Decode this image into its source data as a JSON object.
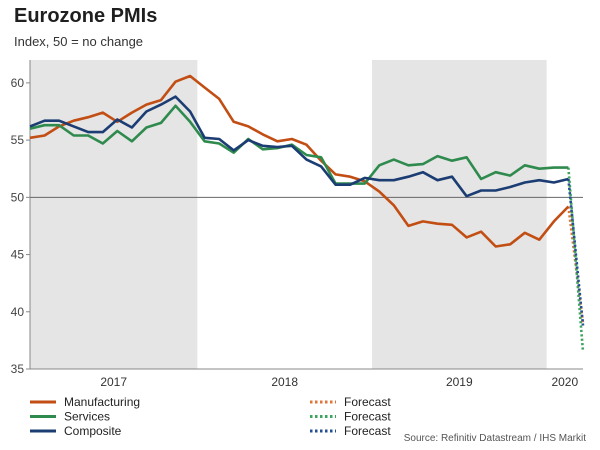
{
  "header": {
    "title": "Eurozone PMIs",
    "subtitle": "Index, 50 = no change"
  },
  "source": "Source: Refinitiv Datastream / IHS Markit",
  "chart_data": {
    "type": "line",
    "title": "Eurozone PMIs",
    "subtitle": "Index, 50 = no change",
    "xlabel": "",
    "ylabel": "",
    "ylim": [
      35,
      62
    ],
    "yticks": [
      35,
      40,
      45,
      50,
      55,
      60
    ],
    "grid": false,
    "reference_line": 50,
    "x": [
      "2017-01",
      "2017-02",
      "2017-03",
      "2017-04",
      "2017-05",
      "2017-06",
      "2017-07",
      "2017-08",
      "2017-09",
      "2017-10",
      "2017-11",
      "2017-12",
      "2018-01",
      "2018-02",
      "2018-03",
      "2018-04",
      "2018-05",
      "2018-06",
      "2018-07",
      "2018-08",
      "2018-09",
      "2018-10",
      "2018-11",
      "2018-12",
      "2019-01",
      "2019-02",
      "2019-03",
      "2019-04",
      "2019-05",
      "2019-06",
      "2019-07",
      "2019-08",
      "2019-09",
      "2019-10",
      "2019-11",
      "2019-12",
      "2020-01",
      "2020-02",
      "2020-03"
    ],
    "year_labels": [
      "2017",
      "2018",
      "2019",
      "2020"
    ],
    "shaded_years": [
      "2017",
      "2019"
    ],
    "series": [
      {
        "name": "Manufacturing",
        "color": "#c24e14",
        "values": [
          55.2,
          55.4,
          56.2,
          56.7,
          57.0,
          57.4,
          56.6,
          57.4,
          58.1,
          58.5,
          60.1,
          60.6,
          59.6,
          58.6,
          56.6,
          56.2,
          55.5,
          54.9,
          55.1,
          54.6,
          53.2,
          52.0,
          51.8,
          51.4,
          50.5,
          49.3,
          47.5,
          47.9,
          47.7,
          47.6,
          46.5,
          47.0,
          45.7,
          45.9,
          46.9,
          46.3,
          47.9,
          49.2,
          null
        ],
        "forecast_color": "#e0743a",
        "forecast": [
          null,
          null,
          null,
          null,
          null,
          null,
          null,
          null,
          null,
          null,
          null,
          null,
          null,
          null,
          null,
          null,
          null,
          null,
          null,
          null,
          null,
          null,
          null,
          null,
          null,
          null,
          null,
          null,
          null,
          null,
          null,
          null,
          null,
          null,
          null,
          null,
          null,
          49.2,
          39.0
        ]
      },
      {
        "name": "Services",
        "color": "#2f8a4e",
        "values": [
          56.0,
          56.3,
          56.3,
          55.4,
          55.4,
          54.7,
          55.8,
          54.9,
          56.1,
          56.5,
          58.0,
          56.6,
          54.9,
          54.7,
          53.9,
          55.1,
          54.2,
          54.3,
          54.6,
          53.7,
          53.5,
          51.2,
          51.2,
          51.2,
          52.8,
          53.3,
          52.8,
          52.9,
          53.6,
          53.2,
          53.5,
          51.6,
          52.2,
          51.9,
          52.8,
          52.5,
          52.6,
          52.6,
          null
        ],
        "forecast_color": "#3fa55e",
        "forecast": [
          null,
          null,
          null,
          null,
          null,
          null,
          null,
          null,
          null,
          null,
          null,
          null,
          null,
          null,
          null,
          null,
          null,
          null,
          null,
          null,
          null,
          null,
          null,
          null,
          null,
          null,
          null,
          null,
          null,
          null,
          null,
          null,
          null,
          null,
          null,
          null,
          null,
          52.6,
          36.5
        ]
      },
      {
        "name": "Composite",
        "color": "#1b3d73",
        "values": [
          56.2,
          56.7,
          56.7,
          56.2,
          55.7,
          55.7,
          56.8,
          56.1,
          57.5,
          58.1,
          58.8,
          57.5,
          55.2,
          55.1,
          54.1,
          55.0,
          54.5,
          54.4,
          54.5,
          53.3,
          52.7,
          51.1,
          51.1,
          51.7,
          51.5,
          51.5,
          51.8,
          52.2,
          51.5,
          51.8,
          50.1,
          50.6,
          50.6,
          50.9,
          51.3,
          51.5,
          51.3,
          51.6,
          null
        ],
        "forecast_color": "#254f93",
        "forecast": [
          null,
          null,
          null,
          null,
          null,
          null,
          null,
          null,
          null,
          null,
          null,
          null,
          null,
          null,
          null,
          null,
          null,
          null,
          null,
          null,
          null,
          null,
          null,
          null,
          null,
          null,
          null,
          null,
          null,
          null,
          null,
          null,
          null,
          null,
          null,
          null,
          null,
          51.6,
          38.8
        ]
      }
    ],
    "legend": {
      "placement": "bottom",
      "entries": [
        {
          "label": "Manufacturing",
          "style": "solid",
          "color": "#c24e14"
        },
        {
          "label": "Services",
          "style": "solid",
          "color": "#2f8a4e"
        },
        {
          "label": "Composite",
          "style": "solid",
          "color": "#1b3d73"
        },
        {
          "label": "Forecast",
          "style": "dotted",
          "color": "#e0743a"
        },
        {
          "label": "Forecast",
          "style": "dotted",
          "color": "#3fa55e"
        },
        {
          "label": "Forecast",
          "style": "dotted",
          "color": "#254f93"
        }
      ]
    }
  }
}
